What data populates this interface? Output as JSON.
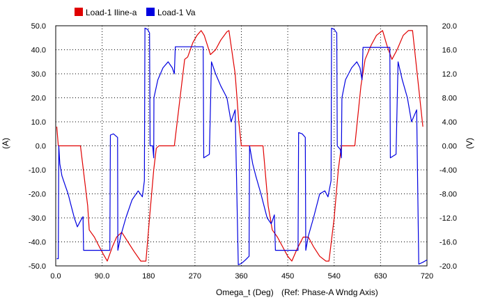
{
  "chart_data": {
    "type": "line",
    "xlabel": "Omega_t (Deg)",
    "xlabel_note": "(Ref: Phase-A Wndg Axis)",
    "ylabel_left": "(A)",
    "ylabel_right": "(V)",
    "xlim": [
      0,
      720
    ],
    "ylim_left": [
      -50,
      50
    ],
    "ylim_right": [
      -20,
      20
    ],
    "x_ticks": [
      "0.0",
      "90.0",
      "180",
      "270",
      "360",
      "450",
      "540",
      "630",
      "720"
    ],
    "y_ticks_left": [
      "50.0",
      "40.0",
      "30.0",
      "20.0",
      "10.0",
      "0.0",
      "-10.0",
      "-20.0",
      "-30.0",
      "-40.0",
      "-50.0"
    ],
    "y_ticks_right": [
      "20.0",
      "16.0",
      "12.0",
      "8.00",
      "4.00",
      "0.00",
      "-4.00",
      "-8.00",
      "-12.0",
      "-16.0",
      "-20.0"
    ],
    "grid": true,
    "legend_position": "top-left",
    "series": [
      {
        "name": "Load-1 Iline-a",
        "axis": "left",
        "color": "#e00000",
        "points": [
          [
            2,
            8
          ],
          [
            5,
            0
          ],
          [
            48,
            0
          ],
          [
            62,
            -25
          ],
          [
            65,
            -35
          ],
          [
            75,
            -38
          ],
          [
            82,
            -41
          ],
          [
            92,
            -45
          ],
          [
            100,
            -48
          ],
          [
            110,
            -42
          ],
          [
            118,
            -38
          ],
          [
            128,
            -36
          ],
          [
            140,
            -40
          ],
          [
            152,
            -44
          ],
          [
            165,
            -48
          ],
          [
            175,
            -48
          ],
          [
            182,
            -30
          ],
          [
            190,
            -10
          ],
          [
            195,
            -1
          ],
          [
            200,
            0
          ],
          [
            230,
            0
          ],
          [
            250,
            36
          ],
          [
            256,
            37
          ],
          [
            266,
            43
          ],
          [
            274,
            46
          ],
          [
            282,
            48
          ],
          [
            288,
            46
          ],
          [
            300,
            38
          ],
          [
            310,
            40
          ],
          [
            320,
            44
          ],
          [
            332,
            47.5
          ],
          [
            336,
            48
          ],
          [
            348,
            30
          ],
          [
            355,
            10
          ],
          [
            360,
            0
          ],
          [
            402,
            0
          ],
          [
            412,
            -25
          ],
          [
            420,
            -35
          ],
          [
            430,
            -38
          ],
          [
            440,
            -42
          ],
          [
            450,
            -46
          ],
          [
            458,
            -48
          ],
          [
            468,
            -43
          ],
          [
            480,
            -38
          ],
          [
            490,
            -38
          ],
          [
            500,
            -42
          ],
          [
            512,
            -46
          ],
          [
            524,
            -48
          ],
          [
            530,
            -48
          ],
          [
            540,
            -30
          ],
          [
            548,
            -10
          ],
          [
            554,
            0
          ],
          [
            580,
            0
          ],
          [
            592,
            25
          ],
          [
            600,
            36
          ],
          [
            612,
            42
          ],
          [
            622,
            46
          ],
          [
            634,
            48
          ],
          [
            642,
            42
          ],
          [
            652,
            36
          ],
          [
            662,
            40
          ],
          [
            674,
            46
          ],
          [
            684,
            48
          ],
          [
            692,
            48
          ],
          [
            712,
            8
          ]
        ]
      },
      {
        "name": "Load-1 Va",
        "axis": "right",
        "color": "#0000e0",
        "points": [
          [
            2,
            -18.8
          ],
          [
            5,
            -18.8
          ],
          [
            6,
            0
          ],
          [
            8,
            -3
          ],
          [
            12,
            -5
          ],
          [
            18,
            -6.5
          ],
          [
            24,
            -8
          ],
          [
            30,
            -10
          ],
          [
            36,
            -12
          ],
          [
            42,
            -13.5
          ],
          [
            48,
            -12.5
          ],
          [
            53,
            -11.8
          ],
          [
            54,
            -17.4
          ],
          [
            80,
            -17.4
          ],
          [
            105,
            -17.4
          ],
          [
            106,
            1.8
          ],
          [
            112,
            2
          ],
          [
            120,
            1.4
          ],
          [
            120.5,
            -17.4
          ],
          [
            126,
            -15
          ],
          [
            136,
            -12
          ],
          [
            148,
            -9
          ],
          [
            160,
            -7.5
          ],
          [
            168,
            -8.5
          ],
          [
            172,
            -5.8
          ],
          [
            173,
            19.6
          ],
          [
            178,
            19.4
          ],
          [
            182,
            18.8
          ],
          [
            183,
            0
          ],
          [
            188,
            0
          ],
          [
            190,
            -2
          ],
          [
            190.5,
            8
          ],
          [
            198,
            11
          ],
          [
            208,
            13
          ],
          [
            218,
            14
          ],
          [
            226,
            13
          ],
          [
            230,
            12
          ],
          [
            232,
            16.5
          ],
          [
            260,
            16.5
          ],
          [
            286,
            16.5
          ],
          [
            287,
            -2
          ],
          [
            298,
            -1.4
          ],
          [
            302,
            14
          ],
          [
            310,
            12
          ],
          [
            320,
            10
          ],
          [
            332,
            8
          ],
          [
            340,
            4
          ],
          [
            348,
            6
          ],
          [
            354,
            -19.8
          ],
          [
            360,
            -19.6
          ],
          [
            368,
            -19
          ],
          [
            375,
            -18.4
          ],
          [
            376,
            0
          ],
          [
            382,
            -3
          ],
          [
            388,
            -5
          ],
          [
            398,
            -8
          ],
          [
            410,
            -12
          ],
          [
            418,
            -13
          ],
          [
            424,
            -11.5
          ],
          [
            426,
            -17.4
          ],
          [
            446,
            -17.4
          ],
          [
            470,
            -17.4
          ],
          [
            471,
            2.2
          ],
          [
            478,
            2
          ],
          [
            484,
            1.4
          ],
          [
            485,
            -17.4
          ],
          [
            490,
            -15
          ],
          [
            500,
            -12
          ],
          [
            512,
            -8
          ],
          [
            522,
            -7.5
          ],
          [
            528,
            -8.5
          ],
          [
            534,
            -5.8
          ],
          [
            535,
            19.6
          ],
          [
            540,
            19.4
          ],
          [
            545,
            18.8
          ],
          [
            546,
            0
          ],
          [
            552,
            -0.6
          ],
          [
            554,
            -2
          ],
          [
            555,
            8
          ],
          [
            562,
            11
          ],
          [
            574,
            13
          ],
          [
            584,
            14
          ],
          [
            590,
            13
          ],
          [
            594,
            11
          ],
          [
            596,
            16.4
          ],
          [
            622,
            16.4
          ],
          [
            648,
            16.4
          ],
          [
            649,
            -2
          ],
          [
            660,
            -1.4
          ],
          [
            664,
            14
          ],
          [
            672,
            11
          ],
          [
            682,
            8
          ],
          [
            690,
            4
          ],
          [
            700,
            6
          ],
          [
            704,
            -19.7
          ],
          [
            712,
            -19.4
          ],
          [
            720,
            -19
          ]
        ]
      }
    ]
  }
}
